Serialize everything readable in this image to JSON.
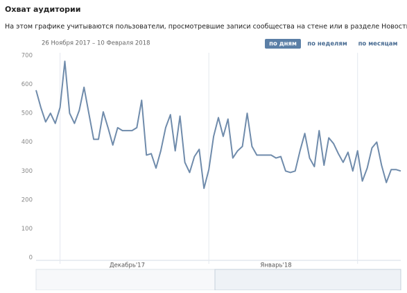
{
  "chart_data": {
    "type": "line",
    "title": "Охват аудитории",
    "subtitle": "На этом графике учитываются пользователи, просмотревшие записи сообщества на стене или в разделе Новости.",
    "date_range": "26 Ноября 2017 – 10 Февраля 2018",
    "period_buttons": [
      "по дням",
      "по неделям",
      "по месяцам"
    ],
    "categories": [
      null,
      null,
      null,
      null,
      null,
      null,
      null,
      null,
      null,
      null,
      null,
      null,
      null,
      null,
      null,
      null,
      null,
      null,
      null,
      "Декабрь'17",
      null,
      null,
      null,
      null,
      null,
      null,
      null,
      null,
      null,
      null,
      null,
      null,
      null,
      null,
      null,
      null,
      null,
      null,
      null,
      null,
      null,
      null,
      null,
      null,
      null,
      null,
      null,
      null,
      null,
      null,
      "Январь'18",
      null,
      null,
      null,
      null,
      null,
      null,
      null,
      null,
      null,
      null,
      null,
      null,
      null,
      null,
      null,
      null,
      null,
      null,
      null,
      null,
      null,
      null,
      null,
      null,
      null,
      null
    ],
    "series": [
      {
        "name": "Охват",
        "color": "#6f8bab",
        "values": [
          580,
          520,
          470,
          500,
          465,
          520,
          680,
          500,
          465,
          510,
          590,
          500,
          410,
          410,
          505,
          450,
          390,
          450,
          440,
          440,
          440,
          450,
          545,
          355,
          360,
          310,
          370,
          450,
          495,
          370,
          490,
          330,
          295,
          350,
          375,
          240,
          305,
          420,
          485,
          420,
          480,
          345,
          370,
          385,
          500,
          385,
          355,
          355,
          355,
          355,
          345,
          350,
          300,
          295,
          300,
          370,
          430,
          345,
          315,
          440,
          320,
          415,
          395,
          360,
          330,
          365,
          300,
          370,
          265,
          310,
          380,
          400,
          320,
          260,
          305,
          305,
          300
        ]
      }
    ],
    "ylim": [
      0,
      700
    ],
    "yticks": [
      0,
      100,
      200,
      300,
      400,
      500,
      600,
      700
    ]
  }
}
